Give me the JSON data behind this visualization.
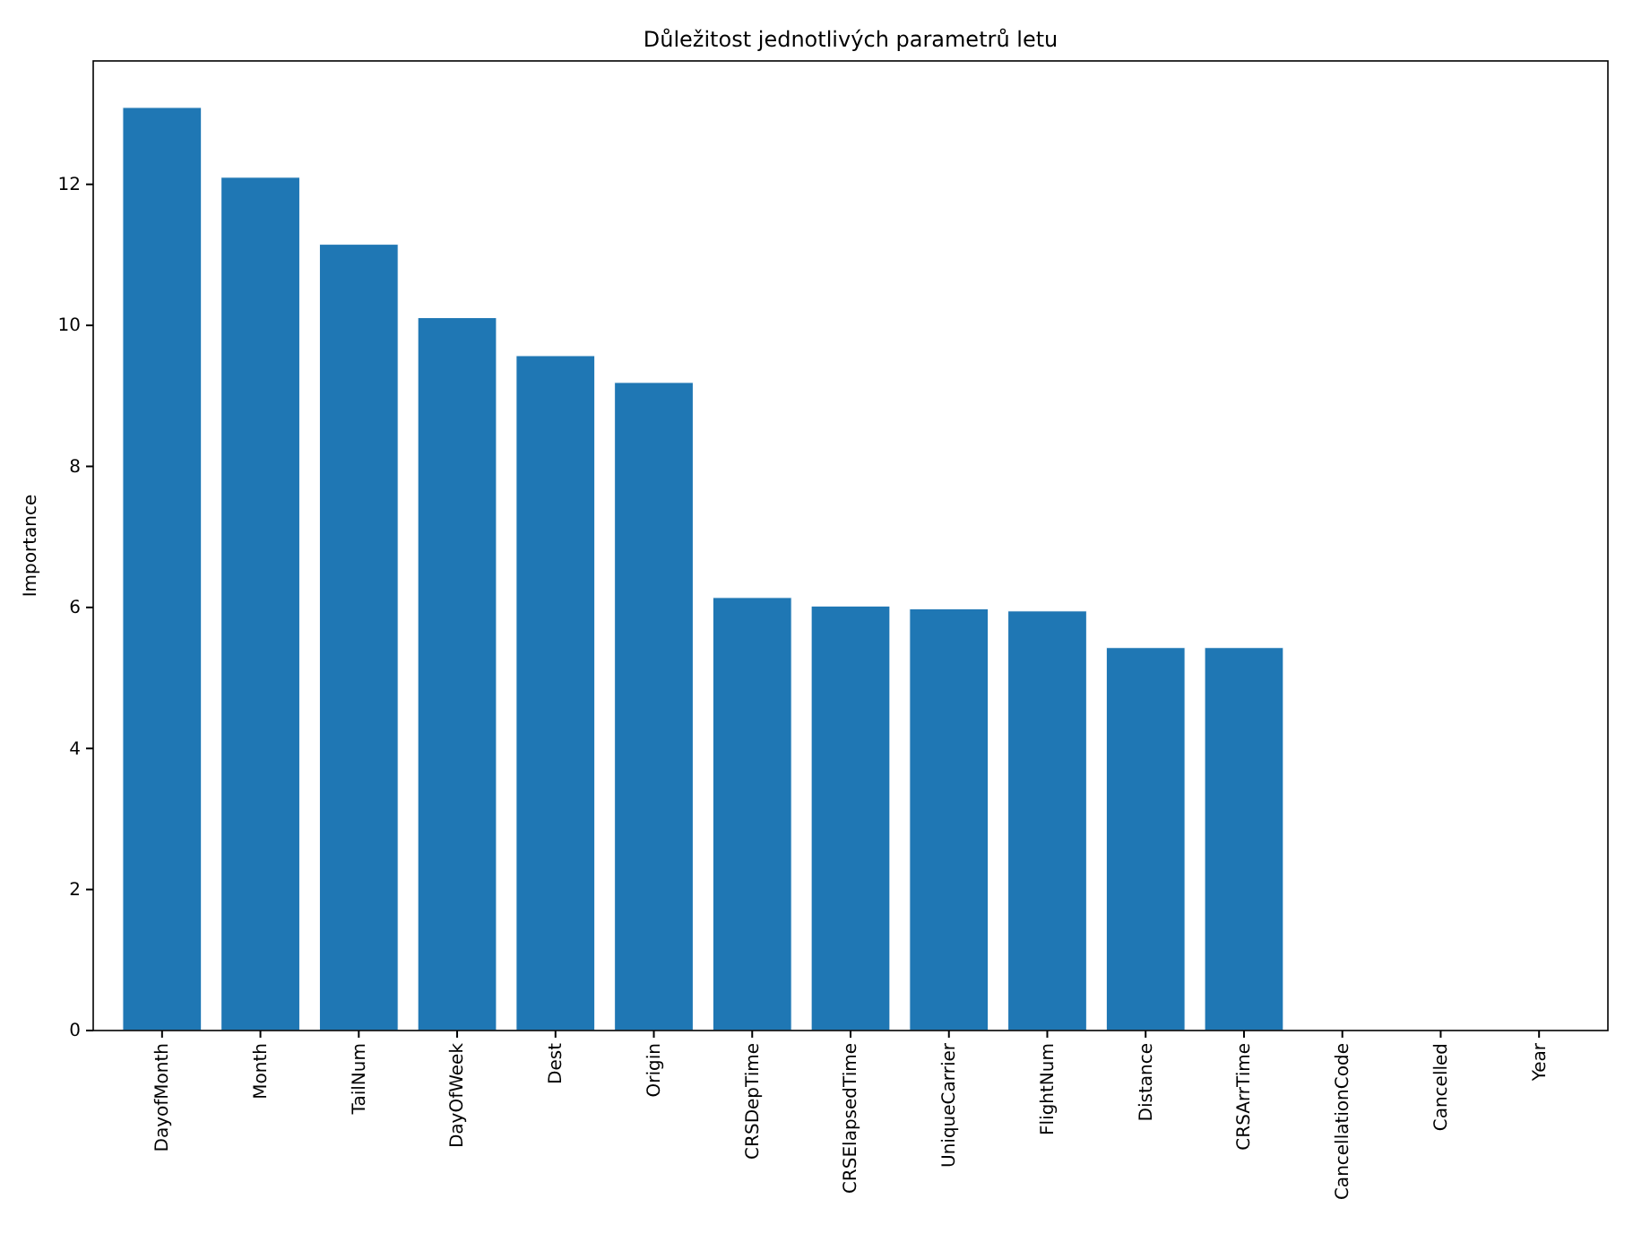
{
  "chart_data": {
    "type": "bar",
    "title": "Důležitost jednotlivých parametrů letu",
    "ylabel": "Importance",
    "categories": [
      "DayofMonth",
      "Month",
      "TailNum",
      "DayOfWeek",
      "Dest",
      "Origin",
      "CRSDepTime",
      "CRSElapsedTime",
      "UniqueCarrier",
      "FlightNum",
      "Distance",
      "CRSArrTime",
      "CancellationCode",
      "Cancelled",
      "Year"
    ],
    "values": [
      13.09,
      12.1,
      11.15,
      10.11,
      9.57,
      9.19,
      6.14,
      6.02,
      5.98,
      5.95,
      5.43,
      5.43,
      0,
      0,
      0
    ],
    "color": "#1f77b4",
    "ylim": [
      0,
      13.75
    ],
    "yticks": [
      0,
      2,
      4,
      6,
      8,
      10,
      12
    ],
    "grid": false
  }
}
